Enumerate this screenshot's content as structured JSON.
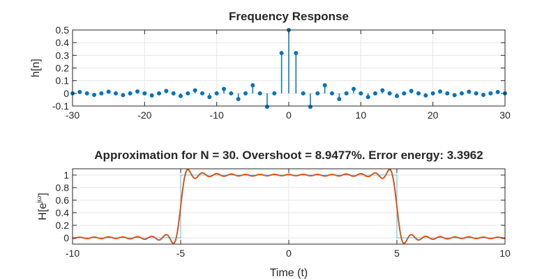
{
  "chart_data": [
    {
      "type": "stem",
      "title": "Frequency Response",
      "xlabel": "",
      "ylabel": "h[n]",
      "xlim": [
        -30,
        30
      ],
      "ylim": [
        -0.1,
        0.5
      ],
      "xticks": [
        "-30",
        "-20",
        "-10",
        "0",
        "10",
        "20",
        "30"
      ],
      "yticks": [
        "-0.1",
        "0",
        "0.1",
        "0.2",
        "0.3",
        "0.4",
        "0.5"
      ],
      "grid": true,
      "color": "#0072BD",
      "x": [
        -30,
        -29,
        -28,
        -27,
        -26,
        -25,
        -24,
        -23,
        -22,
        -21,
        -20,
        -19,
        -18,
        -17,
        -16,
        -15,
        -14,
        -13,
        -12,
        -11,
        -10,
        -9,
        -8,
        -7,
        -6,
        -5,
        -4,
        -3,
        -2,
        -1,
        0,
        1,
        2,
        3,
        4,
        5,
        6,
        7,
        8,
        9,
        10,
        11,
        12,
        13,
        14,
        15,
        16,
        17,
        18,
        19,
        20,
        21,
        22,
        23,
        24,
        25,
        26,
        27,
        28,
        29,
        30
      ],
      "values": [
        0,
        0.011,
        0,
        -0.012,
        0,
        0.013,
        0,
        -0.014,
        0,
        0.015,
        0,
        -0.017,
        0,
        0.019,
        0,
        -0.021,
        0,
        0.024,
        0,
        -0.029,
        0,
        0.035,
        0,
        -0.045,
        0,
        0.064,
        0,
        -0.106,
        0,
        0.318,
        0.5,
        0.318,
        0,
        -0.106,
        0,
        0.064,
        0,
        -0.045,
        0,
        0.035,
        0,
        -0.029,
        0,
        0.024,
        0,
        -0.021,
        0,
        0.019,
        0,
        -0.017,
        0,
        0.015,
        0,
        -0.014,
        0,
        0.013,
        0,
        -0.012,
        0,
        0.011,
        0
      ]
    },
    {
      "type": "line",
      "title": "Approximation for N = 30. Overshoot = 8.9477%. Error energy: 3.3962",
      "xlabel": "Time (t)",
      "ylabel_main": "H[e",
      "ylabel_sup": "jω",
      "ylabel_end": "]",
      "xlim": [
        -10,
        10
      ],
      "ylim": [
        -0.1,
        1.1
      ],
      "xticks": [
        "-10",
        "-5",
        "0",
        "5",
        "10"
      ],
      "yticks": [
        "0",
        "0.2",
        "0.4",
        "0.6",
        "0.8",
        "1"
      ],
      "grid": true,
      "ideal": {
        "color": "#4DBEEE",
        "x": [
          -10,
          -5,
          -5,
          5,
          5,
          10
        ],
        "y": [
          0,
          0,
          1,
          1,
          0,
          0
        ]
      },
      "approx": {
        "color": "#D95319",
        "filter_coefficients": "series 1 values",
        "overshoot_percent": 8.9477
      }
    }
  ]
}
